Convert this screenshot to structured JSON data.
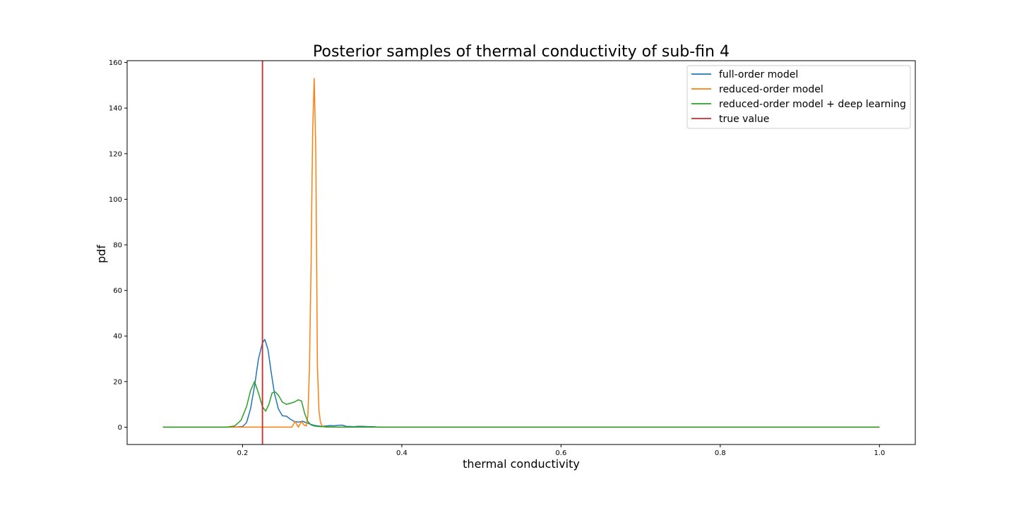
{
  "chart_data": {
    "type": "line",
    "title": "Posterior samples of thermal conductivity of sub-fin 4",
    "xlabel": "thermal conductivity",
    "ylabel": "pdf",
    "xlim": [
      0.055,
      1.045
    ],
    "ylim": [
      -7.6,
      160.8
    ],
    "xticks": [
      0.2,
      0.4,
      0.6,
      0.8,
      1.0
    ],
    "xtick_labels": [
      "0.2",
      "0.4",
      "0.6",
      "0.8",
      "1.0"
    ],
    "yticks": [
      0,
      20,
      40,
      60,
      80,
      100,
      120,
      140,
      160
    ],
    "ytick_labels": [
      "0",
      "20",
      "40",
      "60",
      "80",
      "100",
      "120",
      "140",
      "160"
    ],
    "grid": false,
    "legend_position": "top-right",
    "series": [
      {
        "name": "full-order model",
        "color": "#1f77b4",
        "x": [
          0.1,
          0.19,
          0.2,
          0.205,
          0.21,
          0.215,
          0.22,
          0.225,
          0.228,
          0.232,
          0.236,
          0.24,
          0.245,
          0.25,
          0.255,
          0.26,
          0.265,
          0.27,
          0.275,
          0.28,
          0.285,
          0.29,
          0.295,
          0.3,
          0.305,
          0.31,
          0.315,
          0.32,
          0.325,
          0.33,
          0.34,
          0.345,
          0.35,
          0.355,
          0.36,
          0.365,
          0.37,
          1.0
        ],
        "y": [
          0,
          0,
          0.3,
          2,
          8,
          18,
          30,
          37,
          38.5,
          34,
          24,
          15,
          8,
          5,
          4.8,
          3.5,
          2.5,
          2.2,
          2.6,
          2.0,
          1.3,
          0.8,
          0.5,
          0.4,
          0.5,
          0.7,
          0.6,
          0.8,
          0.9,
          0.4,
          0.2,
          0.35,
          0.4,
          0.3,
          0.25,
          0.2,
          0,
          0
        ]
      },
      {
        "name": "reduced-order model",
        "color": "#ff7f0e",
        "x": [
          0.1,
          0.262,
          0.266,
          0.27,
          0.274,
          0.277,
          0.28,
          0.282,
          0.284,
          0.286,
          0.288,
          0.29,
          0.292,
          0.294,
          0.296,
          0.298,
          0.3,
          0.303,
          0.305,
          1.0
        ],
        "y": [
          0,
          0,
          2.5,
          0,
          2.5,
          1.0,
          0.5,
          5,
          25,
          70,
          130,
          153,
          120,
          27,
          7,
          2,
          0.5,
          0.2,
          0,
          0
        ]
      },
      {
        "name": "reduced-order model + deep learning",
        "color": "#2ca02c",
        "x": [
          0.1,
          0.18,
          0.19,
          0.198,
          0.205,
          0.21,
          0.215,
          0.22,
          0.225,
          0.229,
          0.233,
          0.237,
          0.241,
          0.245,
          0.25,
          0.255,
          0.26,
          0.265,
          0.27,
          0.274,
          0.278,
          0.282,
          0.286,
          0.29,
          0.295,
          0.3,
          0.31,
          0.32,
          1.0
        ],
        "y": [
          0,
          0,
          0.5,
          3,
          9,
          16,
          20,
          15,
          9,
          7,
          10,
          15,
          15.5,
          14,
          11,
          10,
          10.5,
          11,
          12,
          11.5,
          6,
          2.5,
          1,
          0.5,
          0.3,
          0.2,
          0.1,
          0,
          0
        ]
      },
      {
        "name": "true value",
        "color": "#d62728",
        "type": "vline",
        "x": 0.225
      }
    ]
  }
}
